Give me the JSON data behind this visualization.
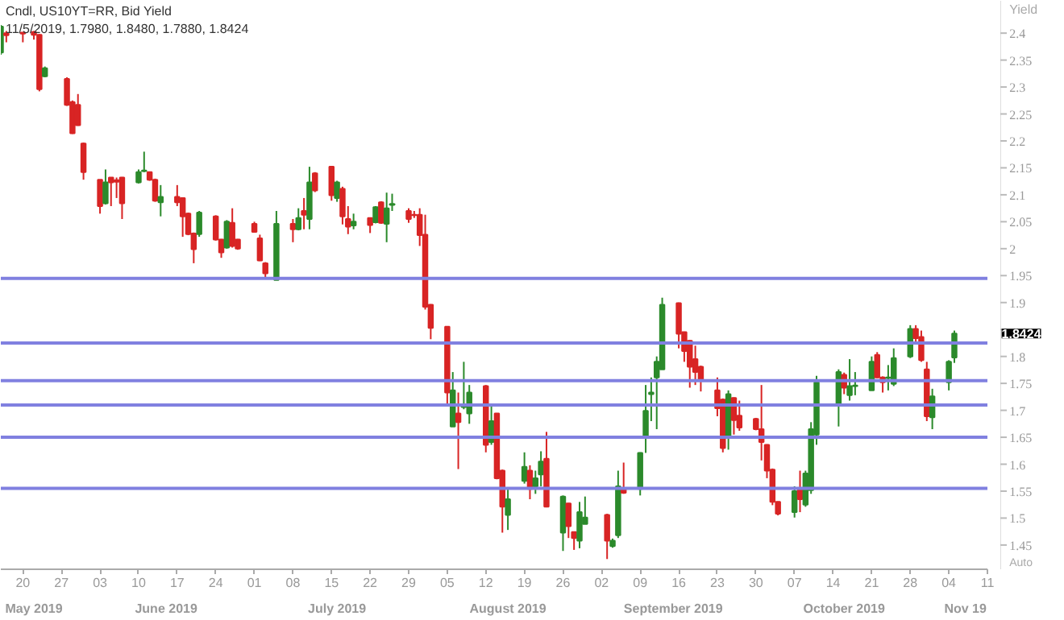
{
  "chart_data": {
    "type": "candlestick",
    "title": "Cndl, US10YT=RR, Bid Yield",
    "subtitle": "11/5/2019, 1.7980, 1.8480, 1.7880, 1.8424",
    "ylabel": "Yield",
    "x": [
      "2019-05-16",
      "2019-05-17",
      "2019-05-20",
      "2019-05-22",
      "2019-05-23",
      "2019-05-24",
      "2019-05-28",
      "2019-05-29",
      "2019-05-30",
      "2019-05-31",
      "2019-06-03",
      "2019-06-04",
      "2019-06-05",
      "2019-06-06",
      "2019-06-07",
      "2019-06-10",
      "2019-06-11",
      "2019-06-12",
      "2019-06-13",
      "2019-06-14",
      "2019-06-17",
      "2019-06-18",
      "2019-06-19",
      "2019-06-20",
      "2019-06-21",
      "2019-06-24",
      "2019-06-25",
      "2019-06-26",
      "2019-06-27",
      "2019-06-28",
      "2019-07-01",
      "2019-07-02",
      "2019-07-03",
      "2019-07-05",
      "2019-07-08",
      "2019-07-09",
      "2019-07-10",
      "2019-07-11",
      "2019-07-12",
      "2019-07-15",
      "2019-07-16",
      "2019-07-17",
      "2019-07-18",
      "2019-07-19",
      "2019-07-22",
      "2019-07-23",
      "2019-07-24",
      "2019-07-25",
      "2019-07-26",
      "2019-07-29",
      "2019-07-30",
      "2019-07-31",
      "2019-08-01",
      "2019-08-02",
      "2019-08-05",
      "2019-08-06",
      "2019-08-07",
      "2019-08-08",
      "2019-08-09",
      "2019-08-12",
      "2019-08-13",
      "2019-08-14",
      "2019-08-15",
      "2019-08-16",
      "2019-08-19",
      "2019-08-20",
      "2019-08-21",
      "2019-08-22",
      "2019-08-23",
      "2019-08-26",
      "2019-08-27",
      "2019-08-28",
      "2019-08-29",
      "2019-08-30",
      "2019-09-03",
      "2019-09-04",
      "2019-09-05",
      "2019-09-06",
      "2019-09-09",
      "2019-09-10",
      "2019-09-11",
      "2019-09-12",
      "2019-09-13",
      "2019-09-16",
      "2019-09-17",
      "2019-09-18",
      "2019-09-19",
      "2019-09-20",
      "2019-09-23",
      "2019-09-24",
      "2019-09-25",
      "2019-09-26",
      "2019-09-27",
      "2019-09-30",
      "2019-10-01",
      "2019-10-02",
      "2019-10-03",
      "2019-10-04",
      "2019-10-07",
      "2019-10-08",
      "2019-10-09",
      "2019-10-10",
      "2019-10-11",
      "2019-10-15",
      "2019-10-16",
      "2019-10-17",
      "2019-10-18",
      "2019-10-21",
      "2019-10-22",
      "2019-10-23",
      "2019-10-24",
      "2019-10-25",
      "2019-10-28",
      "2019-10-29",
      "2019-10-30",
      "2019-10-31",
      "2019-11-01",
      "2019-11-04",
      "2019-11-05"
    ],
    "ohlc": [
      [
        2.364,
        2.415,
        2.36,
        2.412
      ],
      [
        2.4,
        2.404,
        2.383,
        2.396
      ],
      [
        2.401,
        2.402,
        2.383,
        2.399
      ],
      [
        2.402,
        2.404,
        2.388,
        2.397
      ],
      [
        2.397,
        2.398,
        2.292,
        2.296
      ],
      [
        2.32,
        2.338,
        2.318,
        2.335
      ],
      [
        2.315,
        2.318,
        2.265,
        2.267
      ],
      [
        2.272,
        2.275,
        2.213,
        2.214
      ],
      [
        2.267,
        2.287,
        2.228,
        2.229
      ],
      [
        2.195,
        2.197,
        2.128,
        2.142
      ],
      [
        2.128,
        2.128,
        2.065,
        2.079
      ],
      [
        2.084,
        2.147,
        2.082,
        2.123
      ],
      [
        2.132,
        2.132,
        2.079,
        2.123
      ],
      [
        2.127,
        2.132,
        2.094,
        2.124
      ],
      [
        2.132,
        2.133,
        2.055,
        2.084
      ],
      [
        2.123,
        2.147,
        2.121,
        2.142
      ],
      [
        2.144,
        2.18,
        2.142,
        2.145
      ],
      [
        2.142,
        2.143,
        2.126,
        2.128
      ],
      [
        2.128,
        2.13,
        2.087,
        2.089
      ],
      [
        2.086,
        2.118,
        2.06,
        2.096
      ],
      [
        2.096,
        2.118,
        2.079,
        2.086
      ],
      [
        2.094,
        2.095,
        2.022,
        2.06
      ],
      [
        2.065,
        2.067,
        2.025,
        2.027
      ],
      [
        2.028,
        2.03,
        1.973,
        1.999
      ],
      [
        2.027,
        2.07,
        2.022,
        2.067
      ],
      [
        2.06,
        2.062,
        2.015,
        2.017
      ],
      [
        2.017,
        2.018,
        1.983,
        1.993
      ],
      [
        2.002,
        2.053,
        2.0,
        2.05
      ],
      [
        2.048,
        2.075,
        2.002,
        2.005
      ],
      [
        2.017,
        2.018,
        1.998,
        2.0
      ],
      [
        2.046,
        2.05,
        2.03,
        2.031
      ],
      [
        2.019,
        2.026,
        1.977,
        1.978
      ],
      [
        1.973,
        1.975,
        1.947,
        1.954
      ],
      [
        1.942,
        2.07,
        1.942,
        2.046
      ],
      [
        2.046,
        2.055,
        2.012,
        2.036
      ],
      [
        2.036,
        2.075,
        2.034,
        2.057
      ],
      [
        2.07,
        2.094,
        2.036,
        2.063
      ],
      [
        2.055,
        2.152,
        2.036,
        2.123
      ],
      [
        2.14,
        2.142,
        2.105,
        2.108
      ],
      [
        2.152,
        2.153,
        2.089,
        2.099
      ],
      [
        2.094,
        2.126,
        2.087,
        2.123
      ],
      [
        2.111,
        2.115,
        2.045,
        2.06
      ],
      [
        2.055,
        2.079,
        2.027,
        2.041
      ],
      [
        2.043,
        2.065,
        2.036,
        2.05
      ],
      [
        2.057,
        2.058,
        2.029,
        2.044
      ],
      [
        2.049,
        2.079,
        2.047,
        2.077
      ],
      [
        2.086,
        2.088,
        2.046,
        2.048
      ],
      [
        2.046,
        2.104,
        2.012,
        2.075
      ],
      [
        2.081,
        2.102,
        2.07,
        2.083
      ],
      [
        2.07,
        2.075,
        2.048,
        2.055
      ],
      [
        2.063,
        2.07,
        2.057,
        2.062
      ],
      [
        2.063,
        2.075,
        2.005,
        2.025
      ],
      [
        2.026,
        2.063,
        1.887,
        1.892
      ],
      [
        1.896,
        1.897,
        1.832,
        1.853
      ],
      [
        1.855,
        1.856,
        1.709,
        1.733
      ],
      [
        1.67,
        1.771,
        1.67,
        1.737
      ],
      [
        1.694,
        1.733,
        1.591,
        1.678
      ],
      [
        1.706,
        1.79,
        1.702,
        1.707
      ],
      [
        1.694,
        1.747,
        1.675,
        1.733
      ],
      [
        1.745,
        1.747,
        1.622,
        1.636
      ],
      [
        1.641,
        1.708,
        1.636,
        1.68
      ],
      [
        1.694,
        1.695,
        1.572,
        1.574
      ],
      [
        1.588,
        1.59,
        1.473,
        1.521
      ],
      [
        1.506,
        1.554,
        1.478,
        1.535
      ],
      [
        1.569,
        1.622,
        1.564,
        1.595
      ],
      [
        1.588,
        1.598,
        1.535,
        1.554
      ],
      [
        1.559,
        1.588,
        1.545,
        1.574
      ],
      [
        1.581,
        1.624,
        1.559,
        1.605
      ],
      [
        1.61,
        1.66,
        1.52,
        1.521
      ],
      [
        1.473,
        1.542,
        1.439,
        1.54
      ],
      [
        1.527,
        1.528,
        1.463,
        1.485
      ],
      [
        1.474,
        1.475,
        1.441,
        1.463
      ],
      [
        1.458,
        1.53,
        1.444,
        1.511
      ],
      [
        1.489,
        1.54,
        1.489,
        1.501
      ],
      [
        1.506,
        1.508,
        1.424,
        1.458
      ],
      [
        1.448,
        1.462,
        1.445,
        1.458
      ],
      [
        1.468,
        1.588,
        1.463,
        1.559
      ],
      [
        1.554,
        1.603,
        1.545,
        1.547
      ],
      [
        1.554,
        1.622,
        1.542,
        1.621
      ],
      [
        1.651,
        1.747,
        1.621,
        1.699
      ],
      [
        1.73,
        1.761,
        1.68,
        1.733
      ],
      [
        1.761,
        1.8,
        1.665,
        1.79
      ],
      [
        1.776,
        1.909,
        1.776,
        1.896
      ],
      [
        1.899,
        1.9,
        1.815,
        1.842
      ],
      [
        1.845,
        1.846,
        1.79,
        1.81
      ],
      [
        1.829,
        1.83,
        1.742,
        1.781
      ],
      [
        1.795,
        1.82,
        1.747,
        1.771
      ],
      [
        1.781,
        1.783,
        1.735,
        1.757
      ],
      [
        1.737,
        1.761,
        1.689,
        1.704
      ],
      [
        1.72,
        1.722,
        1.622,
        1.63
      ],
      [
        1.651,
        1.737,
        1.627,
        1.73
      ],
      [
        1.723,
        1.724,
        1.655,
        1.682
      ],
      [
        1.69,
        1.718,
        1.662,
        1.668
      ],
      [
        1.684,
        1.686,
        1.663,
        1.665
      ],
      [
        1.665,
        1.747,
        1.607,
        1.641
      ],
      [
        1.636,
        1.637,
        1.574,
        1.588
      ],
      [
        1.59,
        1.592,
        1.524,
        1.53
      ],
      [
        1.53,
        1.531,
        1.505,
        1.508
      ],
      [
        1.511,
        1.559,
        1.501,
        1.55
      ],
      [
        1.553,
        1.588,
        1.511,
        1.535
      ],
      [
        1.525,
        1.588,
        1.521,
        1.583
      ],
      [
        1.552,
        1.678,
        1.545,
        1.665
      ],
      [
        1.655,
        1.764,
        1.636,
        1.752
      ],
      [
        1.713,
        1.776,
        1.67,
        1.771
      ],
      [
        1.766,
        1.77,
        1.73,
        1.742
      ],
      [
        1.728,
        1.795,
        1.718,
        1.745
      ],
      [
        1.745,
        1.771,
        1.728,
        1.746
      ],
      [
        1.737,
        1.8,
        1.737,
        1.79
      ],
      [
        1.803,
        1.808,
        1.76,
        1.761
      ],
      [
        1.761,
        1.763,
        1.733,
        1.752
      ],
      [
        1.76,
        1.784,
        1.737,
        1.761
      ],
      [
        1.749,
        1.815,
        1.745,
        1.797
      ],
      [
        1.8,
        1.858,
        1.797,
        1.851
      ],
      [
        1.851,
        1.858,
        1.824,
        1.834
      ],
      [
        1.836,
        1.848,
        1.79,
        1.793
      ],
      [
        1.776,
        1.79,
        1.68,
        1.689
      ],
      [
        1.687,
        1.74,
        1.665,
        1.726
      ],
      [
        1.752,
        1.793,
        1.737,
        1.79
      ],
      [
        1.798,
        1.848,
        1.788,
        1.8424
      ]
    ],
    "colors": [
      "#2b8a2b",
      "#d82424",
      "#d82424",
      "#d82424",
      "#d82424",
      "#2b8a2b",
      "#d82424",
      "#d82424",
      "#d82424",
      "#d82424",
      "#d82424",
      "#2b8a2b",
      "#d82424",
      "#d82424",
      "#d82424",
      "#2b8a2b",
      "#2b8a2b",
      "#d82424",
      "#d82424",
      "#2b8a2b",
      "#d82424",
      "#d82424",
      "#d82424",
      "#d82424",
      "#2b8a2b",
      "#d82424",
      "#d82424",
      "#2b8a2b",
      "#d82424",
      "#d82424",
      "#d82424",
      "#d82424",
      "#d82424",
      "#2b8a2b",
      "#d82424",
      "#2b8a2b",
      "#d82424",
      "#2b8a2b",
      "#d82424",
      "#d82424",
      "#2b8a2b",
      "#d82424",
      "#d82424",
      "#2b8a2b",
      "#d82424",
      "#2b8a2b",
      "#d82424",
      "#2b8a2b",
      "#2b8a2b",
      "#d82424",
      "#d82424",
      "#d82424",
      "#d82424",
      "#d82424",
      "#d82424",
      "#2b8a2b",
      "#d82424",
      "#2b8a2b",
      "#2b8a2b",
      "#d82424",
      "#2b8a2b",
      "#d82424",
      "#d82424",
      "#2b8a2b",
      "#2b8a2b",
      "#d82424",
      "#2b8a2b",
      "#2b8a2b",
      "#d82424",
      "#2b8a2b",
      "#d82424",
      "#d82424",
      "#2b8a2b",
      "#2b8a2b",
      "#d82424",
      "#2b8a2b",
      "#2b8a2b",
      "#d82424",
      "#2b8a2b",
      "#2b8a2b",
      "#2b8a2b",
      "#2b8a2b",
      "#2b8a2b",
      "#d82424",
      "#d82424",
      "#d82424",
      "#d82424",
      "#d82424",
      "#d82424",
      "#d82424",
      "#2b8a2b",
      "#d82424",
      "#d82424",
      "#d82424",
      "#d82424",
      "#d82424",
      "#d82424",
      "#d82424",
      "#2b8a2b",
      "#d82424",
      "#2b8a2b",
      "#2b8a2b",
      "#2b8a2b",
      "#2b8a2b",
      "#d82424",
      "#2b8a2b",
      "#2b8a2b",
      "#2b8a2b",
      "#d82424",
      "#d82424",
      "#2b8a2b",
      "#2b8a2b",
      "#2b8a2b",
      "#d82424",
      "#d82424",
      "#d82424",
      "#2b8a2b",
      "#2b8a2b",
      "#2b8a2b"
    ],
    "xlim": [
      "2019-05-16",
      "2019-11-11"
    ],
    "xticks": [
      {
        "value": "2019-05-20",
        "label": "20"
      },
      {
        "value": "2019-05-27",
        "label": "27"
      },
      {
        "value": "2019-06-03",
        "label": "03"
      },
      {
        "value": "2019-06-10",
        "label": "10"
      },
      {
        "value": "2019-06-17",
        "label": "17"
      },
      {
        "value": "2019-06-24",
        "label": "24"
      },
      {
        "value": "2019-07-01",
        "label": "01"
      },
      {
        "value": "2019-07-08",
        "label": "08"
      },
      {
        "value": "2019-07-15",
        "label": "15"
      },
      {
        "value": "2019-07-22",
        "label": "22"
      },
      {
        "value": "2019-07-29",
        "label": "29"
      },
      {
        "value": "2019-08-05",
        "label": "05"
      },
      {
        "value": "2019-08-12",
        "label": "12"
      },
      {
        "value": "2019-08-19",
        "label": "19"
      },
      {
        "value": "2019-08-26",
        "label": "26"
      },
      {
        "value": "2019-09-02",
        "label": "02"
      },
      {
        "value": "2019-09-09",
        "label": "09"
      },
      {
        "value": "2019-09-16",
        "label": "16"
      },
      {
        "value": "2019-09-23",
        "label": "23"
      },
      {
        "value": "2019-09-30",
        "label": "30"
      },
      {
        "value": "2019-10-07",
        "label": "07"
      },
      {
        "value": "2019-10-14",
        "label": "14"
      },
      {
        "value": "2019-10-21",
        "label": "21"
      },
      {
        "value": "2019-10-28",
        "label": "28"
      },
      {
        "value": "2019-11-04",
        "label": "04"
      },
      {
        "value": "2019-11-11",
        "label": "11"
      }
    ],
    "x2lim": [
      "2019-05-16",
      "2019-11-11"
    ],
    "x2ticks": [
      {
        "value": "2019-05-22",
        "label": "May 2019"
      },
      {
        "value": "2019-06-15",
        "label": "June 2019"
      },
      {
        "value": "2019-07-16",
        "label": "July 2019"
      },
      {
        "value": "2019-08-16",
        "label": "August 2019"
      },
      {
        "value": "2019-09-15",
        "label": "September 2019"
      },
      {
        "value": "2019-10-16",
        "label": "October 2019"
      },
      {
        "value": "2019-11-07",
        "label": "Nov 19"
      }
    ],
    "ylim": [
      1.405,
      2.46
    ],
    "yticks": [
      1.45,
      1.5,
      1.55,
      1.6,
      1.65,
      1.7,
      1.75,
      1.8,
      {
        "value": 1.85,
        "label": null
      },
      1.9,
      1.95,
      2,
      2.05,
      2.1,
      2.15,
      2.2,
      2.25,
      2.3,
      2.35,
      2.4
    ],
    "ref_lines": [
      {
        "axis": "y",
        "value": 1.945,
        "color": "#8080e0"
      },
      {
        "axis": "y",
        "value": 1.825,
        "color": "#8080e0"
      },
      {
        "axis": "y",
        "value": 1.755,
        "color": "#8080e0"
      },
      {
        "axis": "y",
        "value": 1.71,
        "color": "#8080e0"
      },
      {
        "axis": "y",
        "value": 1.65,
        "color": "#8080e0"
      },
      {
        "axis": "y",
        "value": 1.555,
        "color": "#8080e0"
      }
    ],
    "annotations": [
      "1.8424",
      "Auto"
    ],
    "grid": false
  }
}
